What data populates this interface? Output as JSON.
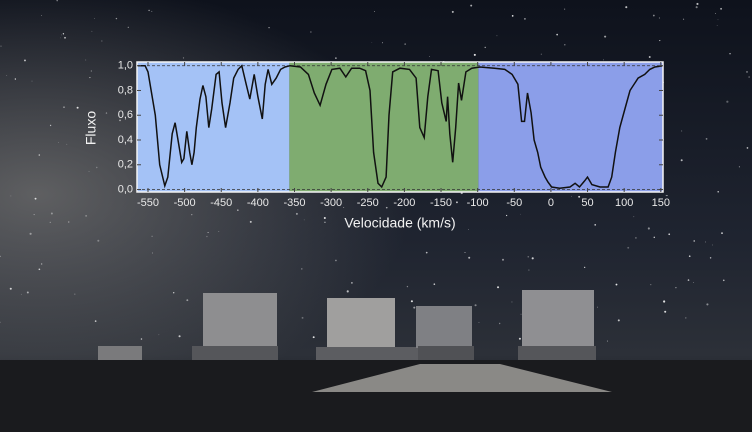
{
  "chart_data": {
    "type": "line",
    "xlabel": "Velocidade (km/s)",
    "ylabel": "Fluxo",
    "xlim": [
      -565,
      153
    ],
    "ylim": [
      -0.02,
      1.03
    ],
    "xticks": [
      -550,
      -500,
      -450,
      -400,
      -350,
      -300,
      -250,
      -200,
      -150,
      -100,
      -50,
      0,
      50,
      100,
      150
    ],
    "yticks": [
      {
        "value": 0,
        "label": "0,0"
      },
      {
        "value": 0.2,
        "label": "0,2"
      },
      {
        "value": 0.4,
        "label": "0,4"
      },
      {
        "value": 0.6,
        "label": "0,6"
      },
      {
        "value": 0.8,
        "label": "0,8"
      },
      {
        "value": 1,
        "label": "1,0"
      }
    ],
    "reference_lines": [
      0,
      1
    ],
    "bands": [
      {
        "start": -565,
        "end": -357,
        "color": "#a4c2f6"
      },
      {
        "start": -357,
        "end": -99,
        "color": "#7fac70"
      },
      {
        "start": -99,
        "end": 153,
        "color": "#8b9ee9"
      }
    ],
    "color": "#111111",
    "x": [
      -565,
      -554,
      -550,
      -540,
      -534,
      -527,
      -523,
      -517,
      -513,
      -509,
      -504,
      -501,
      -497,
      -493,
      -490,
      -487,
      -484,
      -479,
      -475,
      -471,
      -467,
      -463,
      -457,
      -453,
      -449,
      -444,
      -438,
      -433,
      -427,
      -422,
      -416,
      -411,
      -405,
      -400,
      -394,
      -390,
      -386,
      -381,
      -375,
      -369,
      -363,
      -356,
      -342,
      -331,
      -323,
      -315,
      -307,
      -299,
      -288,
      -280,
      -272,
      -261,
      -253,
      -247,
      -242,
      -236,
      -231,
      -225,
      -221,
      -216,
      -206,
      -193,
      -184,
      -179,
      -173,
      -168,
      -163,
      -154,
      -149,
      -143,
      -141,
      -138,
      -134,
      -130,
      -126,
      -122,
      -116,
      -108,
      -97,
      -77,
      -63,
      -53,
      -45,
      -40,
      -36,
      -32,
      -27,
      -23,
      -18,
      -14,
      -8,
      -4,
      1,
      12,
      26,
      33,
      39,
      46,
      50,
      56,
      67,
      78,
      83,
      88,
      94,
      101,
      108,
      119,
      128,
      135,
      142,
      153
    ],
    "values": [
      1.0,
      1.0,
      0.95,
      0.6,
      0.2,
      0.03,
      0.1,
      0.45,
      0.54,
      0.4,
      0.22,
      0.25,
      0.47,
      0.3,
      0.2,
      0.3,
      0.5,
      0.73,
      0.84,
      0.75,
      0.5,
      0.65,
      0.93,
      0.95,
      0.7,
      0.5,
      0.7,
      0.9,
      0.97,
      1.0,
      0.85,
      0.73,
      0.93,
      0.75,
      0.57,
      0.85,
      0.97,
      0.85,
      0.9,
      0.97,
      0.99,
      1.0,
      0.99,
      0.93,
      0.78,
      0.68,
      0.85,
      0.97,
      0.98,
      0.91,
      0.98,
      0.98,
      0.96,
      0.8,
      0.3,
      0.05,
      0.02,
      0.1,
      0.6,
      0.95,
      0.98,
      0.97,
      0.9,
      0.5,
      0.42,
      0.75,
      0.97,
      0.96,
      0.7,
      0.55,
      0.75,
      0.45,
      0.22,
      0.5,
      0.86,
      0.72,
      0.95,
      0.98,
      0.99,
      0.98,
      0.97,
      0.93,
      0.85,
      0.55,
      0.55,
      0.78,
      0.62,
      0.4,
      0.3,
      0.18,
      0.1,
      0.06,
      0.02,
      0.01,
      0.02,
      0.05,
      0.02,
      0.07,
      0.1,
      0.04,
      0.02,
      0.02,
      0.1,
      0.3,
      0.5,
      0.65,
      0.8,
      0.9,
      0.93,
      0.97,
      0.99,
      1.0
    ]
  }
}
